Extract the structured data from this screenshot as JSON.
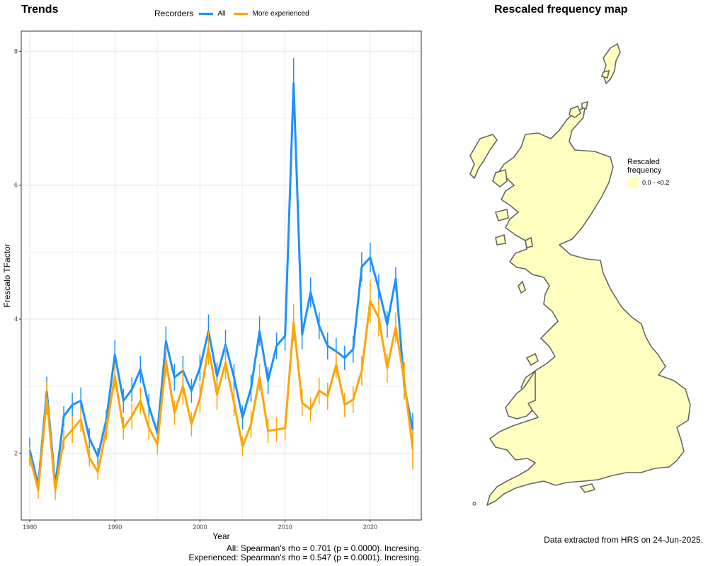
{
  "trends": {
    "title": "Trends",
    "legend": {
      "title": "Recorders",
      "items": [
        {
          "label": "All",
          "color": "#1e90ff"
        },
        {
          "label": "More experienced",
          "color": "#ffa500"
        }
      ]
    },
    "stats": [
      "All: Spearman's rho = 0.701 (p = 0.0000). Incresing.",
      "Experienced: Spearman's rho = 0.547 (p = 0.0001). Incresing."
    ]
  },
  "map": {
    "title": "Rescaled frequency map",
    "legend_title_line1": "Rescaled",
    "legend_title_line2": "frequency",
    "legend_item": "0.0 - <0.2",
    "fill_color": "#ffffc0",
    "outline_color": "#666666",
    "source_note": "Data extracted from HRS on 24-Jun-2025."
  },
  "chart_data": {
    "type": "line",
    "title": "Trends",
    "xlabel": "Year",
    "ylabel": "Frescalo TFactor",
    "xlim": [
      1979,
      2026
    ],
    "ylim": [
      1.0,
      8.3
    ],
    "xticks": [
      1980,
      1990,
      2000,
      2010,
      2020
    ],
    "yticks": [
      2,
      4,
      6,
      8
    ],
    "grid": true,
    "legend_position": "top",
    "x": [
      1980,
      1981,
      1982,
      1983,
      1984,
      1985,
      1986,
      1987,
      1988,
      1989,
      1990,
      1991,
      1992,
      1993,
      1994,
      1995,
      1996,
      1997,
      1998,
      1999,
      2000,
      2001,
      2002,
      2003,
      2004,
      2005,
      2006,
      2007,
      2008,
      2009,
      2010,
      2011,
      2012,
      2013,
      2014,
      2015,
      2016,
      2017,
      2018,
      2019,
      2020,
      2021,
      2022,
      2023,
      2024,
      2025
    ],
    "series": [
      {
        "name": "All",
        "color": "#1e90ff",
        "values": [
          2.05,
          1.52,
          2.92,
          1.52,
          2.55,
          2.72,
          2.78,
          2.22,
          1.95,
          2.5,
          3.47,
          2.78,
          2.95,
          3.25,
          2.7,
          2.3,
          3.67,
          3.13,
          3.23,
          2.93,
          3.27,
          3.82,
          3.15,
          3.62,
          3.13,
          2.53,
          2.97,
          3.82,
          3.08,
          3.6,
          3.75,
          7.52,
          3.77,
          4.4,
          3.9,
          3.6,
          3.52,
          3.42,
          3.55,
          4.78,
          4.92,
          4.45,
          3.92,
          4.6,
          3.0,
          2.35
        ],
        "err": [
          0.18,
          0.1,
          0.22,
          0.12,
          0.15,
          0.18,
          0.2,
          0.15,
          0.12,
          0.15,
          0.22,
          0.18,
          0.18,
          0.2,
          0.18,
          0.15,
          0.22,
          0.2,
          0.22,
          0.18,
          0.2,
          0.25,
          0.2,
          0.22,
          0.2,
          0.18,
          0.2,
          0.22,
          0.2,
          0.2,
          0.22,
          0.38,
          0.22,
          0.22,
          0.2,
          0.2,
          0.2,
          0.18,
          0.2,
          0.22,
          0.22,
          0.22,
          0.2,
          0.18,
          0.2,
          0.25
        ]
      },
      {
        "name": "More experienced",
        "color": "#ffa500",
        "values": [
          1.95,
          1.45,
          2.82,
          1.45,
          2.2,
          2.35,
          2.5,
          1.93,
          1.72,
          2.35,
          3.15,
          2.37,
          2.55,
          2.78,
          2.38,
          2.13,
          3.37,
          2.6,
          3.0,
          2.43,
          2.82,
          3.57,
          2.87,
          3.35,
          2.75,
          2.1,
          2.43,
          3.13,
          2.33,
          2.35,
          2.37,
          3.95,
          2.75,
          2.65,
          2.93,
          2.85,
          3.32,
          2.72,
          2.8,
          3.23,
          4.27,
          4.02,
          3.27,
          3.88,
          3.08,
          2.05
        ],
        "err": [
          0.15,
          0.13,
          0.25,
          0.15,
          0.15,
          0.2,
          0.18,
          0.13,
          0.12,
          0.15,
          0.2,
          0.17,
          0.2,
          0.2,
          0.18,
          0.15,
          0.22,
          0.18,
          0.28,
          0.18,
          0.22,
          0.25,
          0.22,
          0.25,
          0.2,
          0.15,
          0.2,
          0.2,
          0.18,
          0.18,
          0.18,
          0.28,
          0.2,
          0.18,
          0.2,
          0.2,
          0.2,
          0.18,
          0.2,
          0.22,
          0.32,
          0.28,
          0.22,
          0.22,
          0.28,
          0.3
        ]
      }
    ]
  }
}
